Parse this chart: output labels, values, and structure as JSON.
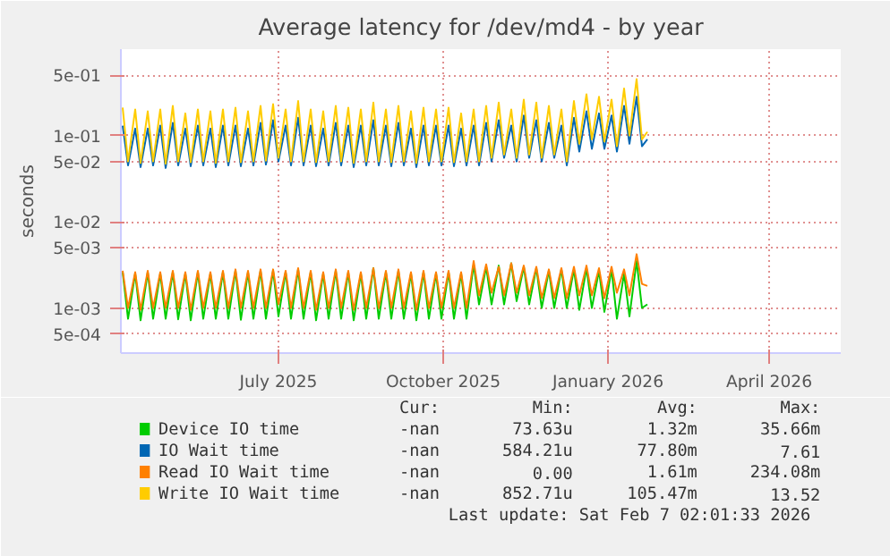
{
  "chart_data": {
    "type": "line",
    "title": "Average latency for /dev/md4 - by year",
    "ylabel": "seconds",
    "log": "y",
    "grid": true,
    "legend": "bottom",
    "line_style": "solid",
    "marker": "none",
    "xlim": [
      "2025-04-19",
      "2026-05-26"
    ],
    "xticks": [
      {
        "value": "2025-07-16",
        "label": "July 2025"
      },
      {
        "value": "2025-10-16",
        "label": "October 2025"
      },
      {
        "value": "2026-01-16",
        "label": "January 2026"
      },
      {
        "value": "2026-04-16",
        "label": "April 2026"
      }
    ],
    "ylim": [
      0.0003,
      1
    ],
    "yticks": [
      {
        "value": 0.0005,
        "label": "5e-04"
      },
      {
        "value": 0.001,
        "label": "1e-03"
      },
      {
        "value": 0.005,
        "label": "5e-03"
      },
      {
        "value": 0.01,
        "label": "1e-02"
      },
      {
        "value": 0.05,
        "label": "5e-02"
      },
      {
        "value": 0.1,
        "label": "1e-01"
      },
      {
        "value": 0.5,
        "label": "5e-01"
      }
    ],
    "x": [
      "2025-04-20",
      "2025-04-23",
      "2025-04-27",
      "2025-04-30",
      "2025-05-04",
      "2025-05-07",
      "2025-05-11",
      "2025-05-14",
      "2025-05-18",
      "2025-05-21",
      "2025-05-25",
      "2025-05-28",
      "2025-06-01",
      "2025-06-04",
      "2025-06-08",
      "2025-06-11",
      "2025-06-15",
      "2025-06-18",
      "2025-06-22",
      "2025-06-25",
      "2025-06-29",
      "2025-07-02",
      "2025-07-06",
      "2025-07-09",
      "2025-07-13",
      "2025-07-16",
      "2025-07-20",
      "2025-07-23",
      "2025-07-27",
      "2025-07-30",
      "2025-08-03",
      "2025-08-06",
      "2025-08-10",
      "2025-08-13",
      "2025-08-17",
      "2025-08-20",
      "2025-08-24",
      "2025-08-27",
      "2025-08-31",
      "2025-09-03",
      "2025-09-07",
      "2025-09-10",
      "2025-09-14",
      "2025-09-17",
      "2025-09-21",
      "2025-09-24",
      "2025-09-28",
      "2025-10-01",
      "2025-10-05",
      "2025-10-08",
      "2025-10-12",
      "2025-10-15",
      "2025-10-19",
      "2025-10-22",
      "2025-10-26",
      "2025-10-29",
      "2025-11-02",
      "2025-11-05",
      "2025-11-09",
      "2025-11-12",
      "2025-11-16",
      "2025-11-19",
      "2025-11-23",
      "2025-11-26",
      "2025-11-30",
      "2025-12-03",
      "2025-12-07",
      "2025-12-10",
      "2025-12-14",
      "2025-12-17",
      "2025-12-21",
      "2025-12-24",
      "2025-12-28",
      "2025-12-31",
      "2026-01-04",
      "2026-01-07",
      "2026-01-11",
      "2026-01-14",
      "2026-01-18",
      "2026-01-21",
      "2026-01-25",
      "2026-01-28",
      "2026-02-01",
      "2026-02-04",
      "2026-02-07"
    ],
    "series": [
      {
        "name": "Device IO time",
        "color": "#00cc00",
        "values": [
          0.0026,
          0.00075,
          0.0025,
          0.00072,
          0.0026,
          0.00075,
          0.0025,
          0.00075,
          0.0026,
          0.00074,
          0.0025,
          0.00072,
          0.0026,
          0.00075,
          0.0025,
          0.00075,
          0.0026,
          0.00075,
          0.0027,
          0.00073,
          0.0026,
          0.00075,
          0.0027,
          0.00075,
          0.0027,
          0.0008,
          0.0026,
          0.00075,
          0.0028,
          0.00075,
          0.0026,
          0.00072,
          0.0025,
          0.00075,
          0.0027,
          0.00075,
          0.0026,
          0.00072,
          0.0025,
          0.00075,
          0.0029,
          0.00075,
          0.0026,
          0.00075,
          0.0027,
          0.00075,
          0.0025,
          0.00072,
          0.0026,
          0.00075,
          0.0025,
          0.00075,
          0.0026,
          0.00075,
          0.0025,
          0.00075,
          0.0032,
          0.0011,
          0.003,
          0.0011,
          0.0031,
          0.0011,
          0.0033,
          0.0012,
          0.003,
          0.0011,
          0.0029,
          0.001,
          0.0027,
          0.001,
          0.0028,
          0.001,
          0.0028,
          0.00095,
          0.0029,
          0.001,
          0.0027,
          0.0009,
          0.0028,
          0.00075,
          0.0025,
          0.0008,
          0.0035,
          0.001,
          0.0011
        ]
      },
      {
        "name": "IO Wait time",
        "color": "#0066b3",
        "values": [
          0.13,
          0.045,
          0.12,
          0.043,
          0.12,
          0.045,
          0.13,
          0.042,
          0.14,
          0.045,
          0.12,
          0.044,
          0.13,
          0.045,
          0.12,
          0.043,
          0.13,
          0.045,
          0.13,
          0.044,
          0.12,
          0.045,
          0.14,
          0.046,
          0.15,
          0.05,
          0.13,
          0.045,
          0.16,
          0.045,
          0.13,
          0.044,
          0.12,
          0.045,
          0.14,
          0.045,
          0.13,
          0.043,
          0.13,
          0.045,
          0.15,
          0.045,
          0.13,
          0.044,
          0.14,
          0.045,
          0.12,
          0.043,
          0.13,
          0.045,
          0.13,
          0.045,
          0.13,
          0.044,
          0.12,
          0.045,
          0.13,
          0.045,
          0.14,
          0.05,
          0.15,
          0.055,
          0.13,
          0.05,
          0.17,
          0.055,
          0.15,
          0.05,
          0.14,
          0.055,
          0.13,
          0.045,
          0.16,
          0.065,
          0.19,
          0.07,
          0.18,
          0.07,
          0.17,
          0.065,
          0.22,
          0.08,
          0.28,
          0.075,
          0.09
        ]
      },
      {
        "name": "Read IO Wait time",
        "color": "#ff8000",
        "values": [
          0.0027,
          0.001,
          0.0026,
          0.00095,
          0.0027,
          0.001,
          0.0026,
          0.001,
          0.0027,
          0.001,
          0.0026,
          0.00095,
          0.0027,
          0.001,
          0.0026,
          0.001,
          0.0027,
          0.001,
          0.0028,
          0.001,
          0.0027,
          0.001,
          0.0028,
          0.001,
          0.0028,
          0.0011,
          0.0027,
          0.001,
          0.0029,
          0.001,
          0.0027,
          0.00095,
          0.0026,
          0.001,
          0.0028,
          0.001,
          0.0027,
          0.00095,
          0.0026,
          0.001,
          0.0029,
          0.001,
          0.0027,
          0.001,
          0.0028,
          0.001,
          0.0026,
          0.00095,
          0.0027,
          0.001,
          0.0026,
          0.001,
          0.0027,
          0.001,
          0.0026,
          0.001,
          0.0035,
          0.0014,
          0.0032,
          0.0015,
          0.003,
          0.0014,
          0.0033,
          0.0015,
          0.0031,
          0.0014,
          0.003,
          0.0013,
          0.0028,
          0.0013,
          0.0029,
          0.0013,
          0.003,
          0.0014,
          0.0031,
          0.0014,
          0.0029,
          0.0013,
          0.003,
          0.0015,
          0.0028,
          0.0014,
          0.0042,
          0.0019,
          0.0018
        ]
      },
      {
        "name": "Write IO Wait time",
        "color": "#ffcc00",
        "values": [
          0.21,
          0.05,
          0.2,
          0.048,
          0.19,
          0.05,
          0.2,
          0.047,
          0.22,
          0.05,
          0.18,
          0.049,
          0.2,
          0.05,
          0.19,
          0.048,
          0.2,
          0.05,
          0.21,
          0.049,
          0.19,
          0.05,
          0.22,
          0.051,
          0.23,
          0.055,
          0.2,
          0.05,
          0.25,
          0.05,
          0.2,
          0.049,
          0.19,
          0.05,
          0.22,
          0.05,
          0.21,
          0.048,
          0.2,
          0.05,
          0.24,
          0.05,
          0.2,
          0.049,
          0.22,
          0.05,
          0.19,
          0.048,
          0.21,
          0.05,
          0.2,
          0.05,
          0.21,
          0.049,
          0.18,
          0.05,
          0.2,
          0.05,
          0.22,
          0.055,
          0.24,
          0.06,
          0.2,
          0.055,
          0.26,
          0.06,
          0.24,
          0.055,
          0.22,
          0.06,
          0.2,
          0.05,
          0.25,
          0.08,
          0.3,
          0.09,
          0.28,
          0.085,
          0.26,
          0.075,
          0.35,
          0.1,
          0.45,
          0.09,
          0.11
        ]
      }
    ],
    "annotations": [
      "Cur:",
      "Min:",
      "Avg:",
      "Max:",
      "-nan",
      "73.63u",
      "1.32m",
      "35.66m",
      "-nan",
      "584.21u",
      "77.80m",
      "7.61",
      "-nan",
      "0.00",
      "1.61m",
      "234.08m",
      "-nan",
      "852.71u",
      "105.47m",
      "13.52",
      "Last update: Sat Feb  7 02:01:33 2026"
    ]
  }
}
